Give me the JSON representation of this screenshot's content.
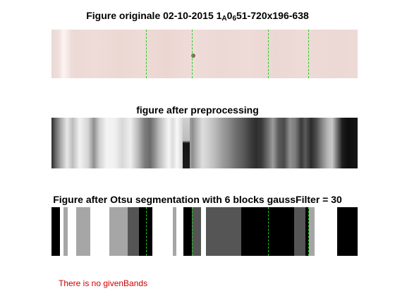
{
  "figure": {
    "title1": {
      "prefix": "Figure originale 02-10-2015  1",
      "sub1": "A",
      "mid": "0",
      "sub2": "6",
      "suffix": "51-720x196-638"
    },
    "title2": "figure after preprocessing",
    "title3": "Figure after Otsu segmentation with 6 blocks gaussFilter = 30",
    "message": "There is no givenBands",
    "colors": {
      "guide_line": "#22cc22",
      "message": "#cc0000"
    }
  }
}
